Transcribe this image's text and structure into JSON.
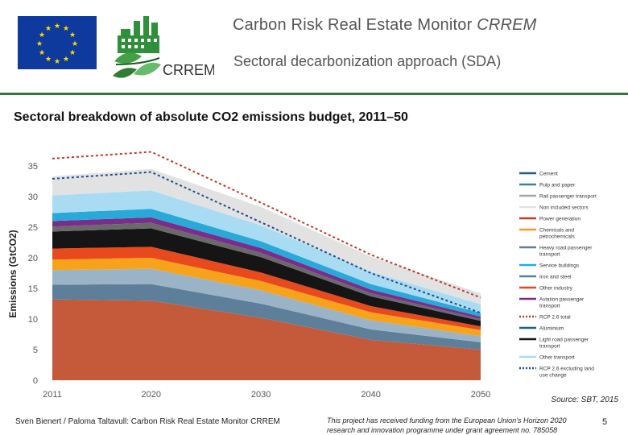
{
  "header": {
    "title_main": "Carbon Risk Real Estate Monitor ",
    "title_italic": "CRREM",
    "subtitle": "Sectoral decarbonization approach (SDA)",
    "logo_text": "CRREM"
  },
  "slide": {
    "title": "Sectoral breakdown of absolute CO2 emissions budget, 2011–50"
  },
  "chart_data": {
    "type": "area",
    "title": "",
    "xlabel": "",
    "ylabel": "Emissions (GtCO2)",
    "x": [
      2011,
      2020,
      2030,
      2040,
      2050
    ],
    "xticks": [
      "2011",
      "2020",
      "2030",
      "2040",
      "2050"
    ],
    "yticks": [
      "0",
      "5",
      "10",
      "15",
      "20",
      "25",
      "30",
      "35"
    ],
    "ylim": [
      0,
      35
    ],
    "grid": false,
    "legend_position": "right",
    "stacked_series": [
      {
        "name": "Other transport",
        "color": "#c55a3a",
        "values": [
          13.2,
          13.0,
          10.2,
          6.6,
          5.0
        ]
      },
      {
        "name": "Light road passenger transport",
        "color": "#5e7f99",
        "values": [
          2.4,
          2.7,
          2.3,
          1.7,
          1.2
        ]
      },
      {
        "name": "Aluminium",
        "color": "#9bb3c6",
        "values": [
          2.4,
          2.5,
          2.2,
          1.5,
          1.0
        ]
      },
      {
        "name": "Aviation passenger transport",
        "color": "#f7a21b",
        "values": [
          1.7,
          1.8,
          1.5,
          1.3,
          1.0
        ]
      },
      {
        "name": "Other industry",
        "color": "#e8491d",
        "values": [
          1.8,
          1.8,
          1.4,
          1.0,
          0.6
        ]
      },
      {
        "name": "Iron and steel",
        "color": "#151515",
        "values": [
          2.8,
          3.0,
          2.5,
          1.6,
          0.9
        ]
      },
      {
        "name": "Service buildings",
        "color": "#6a6a6a",
        "values": [
          0.8,
          0.9,
          0.7,
          0.5,
          0.3
        ]
      },
      {
        "name": "Heavy road passenger transport",
        "color": "#7b2d8b",
        "values": [
          0.9,
          0.9,
          0.8,
          0.6,
          0.4
        ]
      },
      {
        "name": "Chemicals and petrochemicals",
        "color": "#29a9d8",
        "values": [
          1.3,
          1.4,
          1.1,
          0.9,
          0.6
        ]
      },
      {
        "name": "Power generation",
        "color": "#a9dcf3",
        "values": [
          2.9,
          3.0,
          2.6,
          2.0,
          1.4
        ]
      },
      {
        "name": "Non included sectors",
        "color": "#e2e2e2",
        "values": [
          3.1,
          3.5,
          3.0,
          2.5,
          1.8
        ]
      }
    ],
    "line_series": [
      {
        "name": "RCP 2.6 total",
        "color": "#c0392b",
        "values": [
          36.2,
          37.3,
          29.0,
          20.5,
          13.5
        ]
      },
      {
        "name": "RCP 2.6 excluding land use change",
        "color": "#1f4e8c",
        "values": [
          32.9,
          34.0,
          25.8,
          17.5,
          11.0
        ]
      }
    ],
    "legend": [
      {
        "label": "Cement",
        "color": "#1f5f8b",
        "style": "line"
      },
      {
        "label": "Pulp and paper",
        "color": "#3a7fb6",
        "style": "line"
      },
      {
        "label": "Rail passenger transport",
        "color": "#a6a6a6",
        "style": "line"
      },
      {
        "label": "Non included sectors",
        "color": "#e2e2e2",
        "style": "line"
      },
      {
        "label": "Power generation",
        "color": "#c0392b",
        "style": "line"
      },
      {
        "label": "Chemicals and petrochemicals",
        "color": "#f0a01e",
        "style": "line"
      },
      {
        "label": "Heavy road passenger transport",
        "color": "#6a7c8c",
        "style": "line"
      },
      {
        "label": "Service buildings",
        "color": "#29a9d8",
        "style": "line"
      },
      {
        "label": "Iron and steel",
        "color": "#5e7f99",
        "style": "line"
      },
      {
        "label": "Other industry",
        "color": "#e8491d",
        "style": "line"
      },
      {
        "label": "Aviation passenger transport",
        "color": "#7b2d8b",
        "style": "line"
      },
      {
        "label": "RCP 2.6 total",
        "color": "#c0392b",
        "style": "dotted"
      },
      {
        "label": "Aluminium",
        "color": "#1f5f8b",
        "style": "line"
      },
      {
        "label": "Light road passenger transport",
        "color": "#151515",
        "style": "line"
      },
      {
        "label": "Other transport",
        "color": "#a9dcf3",
        "style": "line"
      },
      {
        "label": "RCP 2.6 excluding land use change",
        "color": "#1f4e8c",
        "style": "dotted"
      }
    ]
  },
  "footer": {
    "source": "Source: SBT, 2015",
    "author": "Sven Bienert / Paloma Taltavull: Carbon Risk Real Estate Monitor CRREM",
    "funding": "This project has received funding from the European Union’s Horizon 2020 research and innovation programme under grant agreement no. 785058",
    "page": "5"
  }
}
